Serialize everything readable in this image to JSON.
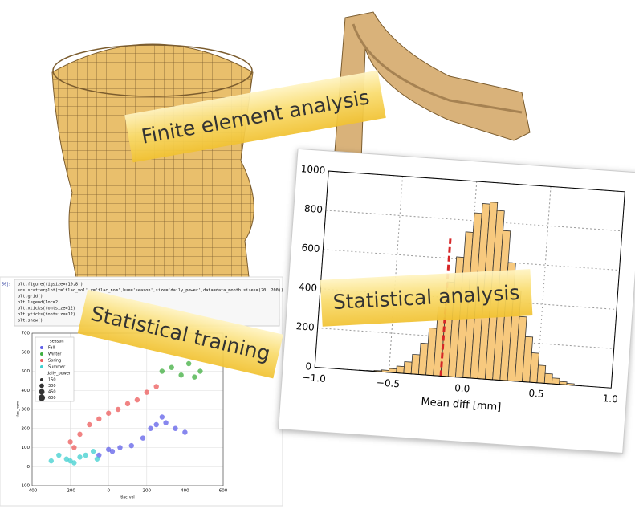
{
  "labels": {
    "fea": "Finite element analysis",
    "stat_analysis": "Statistical analysis",
    "stat_training": "Statistical training"
  },
  "histogram": {
    "type": "histogram",
    "xlabel": "Mean diff [mm]",
    "color": "#f7c97e",
    "line_color": "#d62728",
    "bins": [
      -0.8,
      -0.75,
      -0.7,
      -0.65,
      -0.6,
      -0.55,
      -0.5,
      -0.45,
      -0.4,
      -0.35,
      -0.3,
      -0.25,
      -0.2,
      -0.15,
      -0.1,
      -0.05,
      0,
      0.05,
      0.1,
      0.15,
      0.2,
      0.25,
      0.3,
      0.35,
      0.4,
      0.45,
      0.5,
      0.55,
      0.6,
      0.65,
      0.7,
      0.75,
      0.8
    ],
    "counts": [
      0,
      0,
      1,
      2,
      5,
      10,
      20,
      35,
      60,
      100,
      160,
      240,
      350,
      480,
      610,
      740,
      840,
      890,
      900,
      860,
      760,
      600,
      460,
      330,
      230,
      150,
      90,
      50,
      30,
      15,
      8,
      3
    ],
    "marker_x": -0.15,
    "xlim": [
      -1,
      1
    ],
    "ylim": [
      0,
      1000
    ],
    "xticks": [
      {
        "value": -1,
        "label": "−1.0"
      },
      {
        "value": -0.5,
        "label": "−0.5"
      },
      {
        "value": 0,
        "label": "0.0"
      },
      0.5,
      {
        "value": 1,
        "label": "1.0"
      }
    ],
    "yticks": [
      0,
      200,
      400,
      600,
      800,
      1000
    ],
    "grid": true
  },
  "notebook": {
    "prompt": "56]:",
    "code": [
      "plt.figure(figsize=(10,8))",
      "sns.scatterplot(x='tlac_vol',y='tlac_nom',hue='season',size='daily_power',data=data_month,sizes=(20, 200))",
      "plt.grid()",
      "plt.legend(loc=2)",
      "plt.xticks(fontsize=12)",
      "plt.yticks(fontsize=12)",
      "plt.show()"
    ]
  },
  "scatter": {
    "type": "scatter",
    "xlabel": "tlac_vol",
    "ylabel": "tlac_nom",
    "xlim": [
      -400,
      600
    ],
    "ylim": [
      -100,
      700
    ],
    "xticks": [
      -400,
      -200,
      0,
      200,
      400,
      600
    ],
    "yticks": [
      -100,
      0,
      100,
      200,
      300,
      400,
      500,
      600,
      700
    ],
    "grid": true,
    "legend_title": "season",
    "size_title": "daily_power",
    "sizes": [
      150,
      300,
      450,
      600
    ],
    "series": [
      {
        "name": "Fall",
        "color": "#5f5fe8",
        "x": [
          180,
          220,
          250,
          280,
          300,
          350,
          400,
          120,
          60,
          20,
          0,
          -50
        ],
        "y": [
          150,
          200,
          220,
          260,
          230,
          200,
          180,
          110,
          100,
          80,
          90,
          60
        ]
      },
      {
        "name": "Winter",
        "color": "#3fae3f",
        "x": [
          280,
          330,
          380,
          420,
          450,
          480
        ],
        "y": [
          500,
          520,
          480,
          540,
          470,
          500
        ]
      },
      {
        "name": "Spring",
        "color": "#ec5a5a",
        "x": [
          -200,
          -150,
          -100,
          -50,
          0,
          50,
          100,
          150,
          200,
          250,
          -180
        ],
        "y": [
          130,
          170,
          220,
          250,
          280,
          300,
          330,
          350,
          390,
          420,
          100
        ]
      },
      {
        "name": "Summer",
        "color": "#3fcfcf",
        "x": [
          -300,
          -260,
          -220,
          -180,
          -150,
          -120,
          -80,
          -60,
          -200
        ],
        "y": [
          30,
          60,
          40,
          20,
          50,
          60,
          80,
          40,
          30
        ]
      }
    ]
  }
}
